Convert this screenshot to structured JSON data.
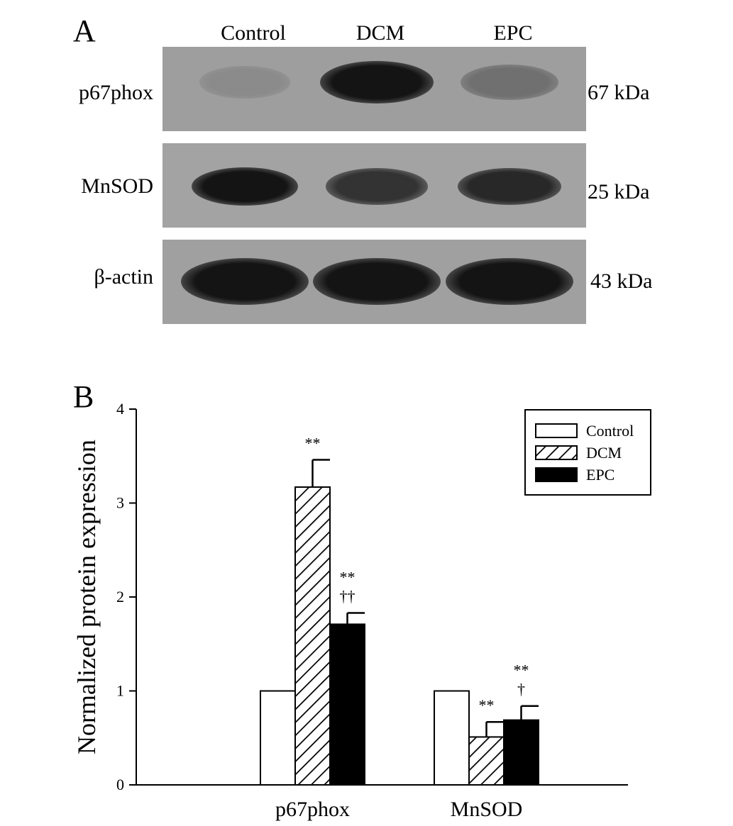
{
  "panel_a": {
    "letter": "A",
    "lanes": [
      "Control",
      "DCM",
      "EPC"
    ],
    "blots": [
      {
        "protein": "p67phox",
        "kda": "67 kDa",
        "background": "#9e9e9e",
        "bands": [
          {
            "lane": "Control",
            "intensity": 0.18
          },
          {
            "lane": "DCM",
            "intensity": 1.0
          },
          {
            "lane": "EPC",
            "intensity": 0.45
          }
        ]
      },
      {
        "protein": "MnSOD",
        "kda": "25 kDa",
        "background": "#a3a3a3",
        "bands": [
          {
            "lane": "Control",
            "intensity": 1.0
          },
          {
            "lane": "DCM",
            "intensity": 0.85
          },
          {
            "lane": "EPC",
            "intensity": 0.9
          }
        ]
      },
      {
        "protein": "β-actin",
        "kda": "43 kDa",
        "background": "#a0a0a0",
        "bands": [
          {
            "lane": "Control",
            "intensity": 1.0
          },
          {
            "lane": "DCM",
            "intensity": 1.0
          },
          {
            "lane": "EPC",
            "intensity": 1.0
          }
        ]
      }
    ]
  },
  "panel_b": {
    "letter": "B"
  },
  "chart_data": {
    "type": "bar",
    "title": "",
    "xlabel": "",
    "ylabel": "Normalized protein expression",
    "categories": [
      "p67phox",
      "MnSOD"
    ],
    "ylim": [
      0,
      4
    ],
    "yticks": [
      "0",
      "1",
      "2",
      "3",
      "4"
    ],
    "grid": false,
    "legend_position": "top-right",
    "series": [
      {
        "name": "Control",
        "pattern": "open",
        "values": [
          1.0,
          1.0
        ],
        "errors": [
          0,
          0
        ],
        "annotations": [
          "",
          ""
        ]
      },
      {
        "name": "DCM",
        "pattern": "hatched",
        "values": [
          3.17,
          0.51
        ],
        "errors": [
          0.29,
          0.16
        ],
        "annotations": [
          [
            "**"
          ],
          [
            "**"
          ]
        ]
      },
      {
        "name": "EPC",
        "pattern": "solid",
        "values": [
          1.71,
          0.69
        ],
        "errors": [
          0.12,
          0.15
        ],
        "annotations": [
          [
            "**",
            "††"
          ],
          [
            "**",
            "†"
          ]
        ]
      }
    ]
  }
}
